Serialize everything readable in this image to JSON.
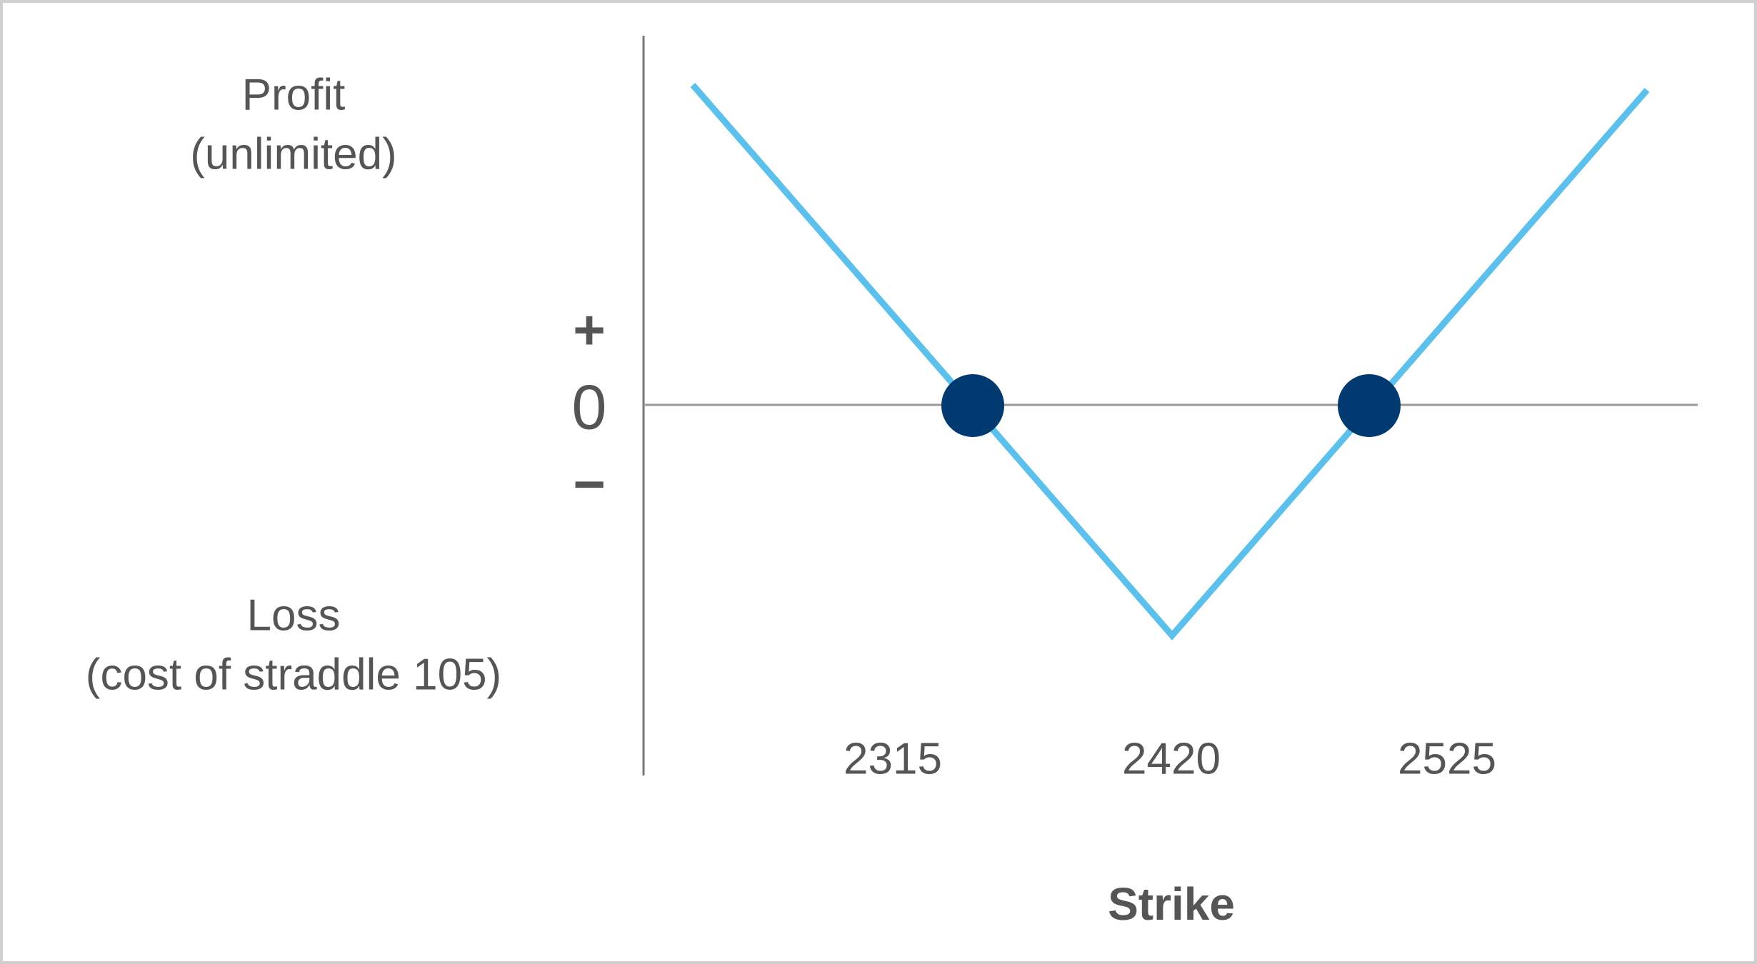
{
  "labels": {
    "profit": "Profit",
    "profit_note": "(unlimited)",
    "plus": "+",
    "zero": "0",
    "minus": "−",
    "loss": "Loss",
    "loss_note": "(cost of straddle 105)"
  },
  "x_labels": [
    "2315",
    "2420",
    "2525"
  ],
  "x_title": "Strike"
}
